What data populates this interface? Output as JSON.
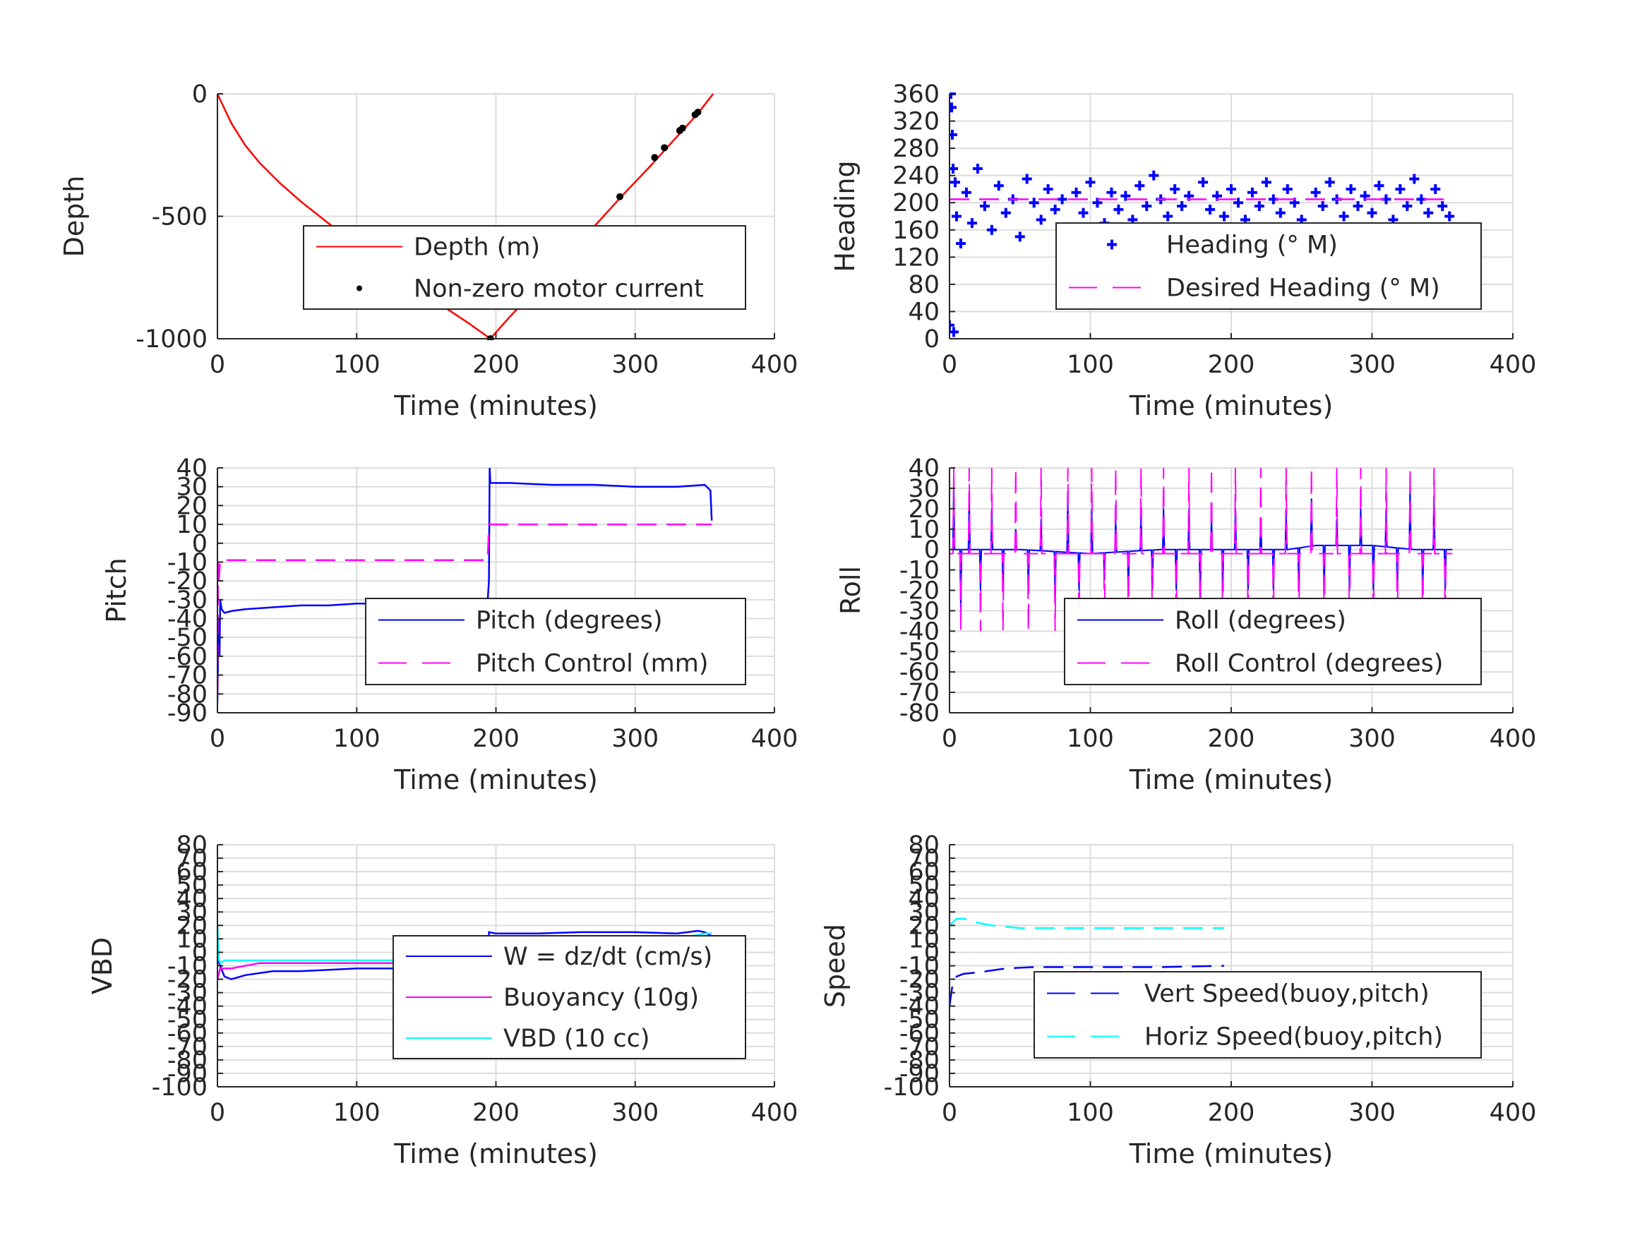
{
  "chart_data": [
    {
      "id": "depth",
      "type": "line",
      "xlabel": "Time (minutes)",
      "ylabel": "Depth",
      "xlim": [
        0,
        400
      ],
      "ylim": [
        -1000,
        0
      ],
      "xticks": [
        0,
        100,
        200,
        300,
        400
      ],
      "xtick_labels": [
        "0",
        "100",
        "200",
        "300",
        "400"
      ],
      "yticks": [
        0,
        -500,
        -1000
      ],
      "ytick_labels": [
        "0",
        "-500",
        "-1000"
      ],
      "grid": true,
      "legend_position": "center-right",
      "series": [
        {
          "name": "Depth (m)",
          "style": "line",
          "color": "#ff0000",
          "x": [
            0,
            10,
            20,
            30,
            45,
            60,
            80,
            100,
            120,
            140,
            160,
            180,
            196,
            210,
            230,
            250,
            270,
            290,
            310,
            330,
            345,
            356
          ],
          "y": [
            0,
            -120,
            -210,
            -280,
            -365,
            -440,
            -530,
            -615,
            -700,
            -780,
            -860,
            -935,
            -1000,
            -910,
            -790,
            -665,
            -545,
            -420,
            -300,
            -175,
            -80,
            0
          ]
        },
        {
          "name": "Non-zero motor current",
          "style": "marker",
          "marker": "dot",
          "color": "#000000",
          "x": [
            196,
            289,
            314,
            321,
            332,
            334,
            343,
            345
          ],
          "y": [
            -1000,
            -420,
            -260,
            -220,
            -150,
            -140,
            -85,
            -75
          ]
        }
      ]
    },
    {
      "id": "heading",
      "type": "scatter",
      "xlabel": "Time (minutes)",
      "ylabel": "Heading",
      "xlim": [
        0,
        400
      ],
      "ylim": [
        0,
        360
      ],
      "xticks": [
        0,
        100,
        200,
        300,
        400
      ],
      "xtick_labels": [
        "0",
        "100",
        "200",
        "300",
        "400"
      ],
      "yticks": [
        0,
        40,
        80,
        120,
        160,
        200,
        240,
        280,
        320,
        360
      ],
      "ytick_labels": [
        "0",
        "40",
        "80",
        "120",
        "160",
        "200",
        "240",
        "280",
        "320",
        "360"
      ],
      "grid": true,
      "legend_position": "lower-right",
      "series": [
        {
          "name": "Heading (° M)",
          "style": "marker",
          "marker": "plus",
          "color": "#0000ff",
          "x": [
            0,
            1,
            1.5,
            2,
            2.5,
            3,
            4,
            5,
            8,
            12,
            16,
            20,
            25,
            30,
            35,
            40,
            45,
            50,
            55,
            60,
            65,
            70,
            75,
            80,
            85,
            90,
            95,
            100,
            105,
            110,
            115,
            120,
            125,
            130,
            135,
            140,
            145,
            150,
            155,
            160,
            165,
            170,
            175,
            180,
            185,
            190,
            195,
            200,
            205,
            210,
            215,
            220,
            225,
            230,
            235,
            240,
            245,
            250,
            255,
            260,
            265,
            270,
            275,
            280,
            285,
            290,
            295,
            300,
            305,
            310,
            315,
            320,
            325,
            330,
            335,
            340,
            345,
            350,
            355
          ],
          "y": [
            20,
            360,
            340,
            300,
            250,
            10,
            230,
            180,
            140,
            215,
            170,
            250,
            195,
            160,
            225,
            185,
            205,
            150,
            235,
            200,
            175,
            220,
            190,
            205,
            160,
            215,
            185,
            230,
            200,
            170,
            215,
            190,
            210,
            175,
            225,
            195,
            240,
            205,
            180,
            220,
            195,
            210,
            130,
            230,
            190,
            210,
            180,
            220,
            200,
            175,
            215,
            195,
            230,
            205,
            185,
            220,
            200,
            175,
            140,
            215,
            195,
            230,
            205,
            180,
            220,
            195,
            210,
            185,
            225,
            205,
            175,
            220,
            195,
            235,
            205,
            185,
            220,
            195,
            180
          ]
        },
        {
          "name": "Desired Heading (° M)",
          "style": "dashed",
          "color": "#ff00ff",
          "x": [
            0,
            357
          ],
          "y": [
            205,
            205
          ]
        }
      ]
    },
    {
      "id": "pitch",
      "type": "line",
      "xlabel": "Time (minutes)",
      "ylabel": "Pitch",
      "xlim": [
        0,
        400
      ],
      "ylim": [
        -90,
        40
      ],
      "xticks": [
        0,
        100,
        200,
        300,
        400
      ],
      "xtick_labels": [
        "0",
        "100",
        "200",
        "300",
        "400"
      ],
      "yticks": [
        40,
        30,
        20,
        10,
        0,
        -10,
        -20,
        -30,
        -40,
        -50,
        -60,
        -70,
        -80,
        -90
      ],
      "ytick_labels": [
        "40",
        "30",
        "20",
        "10",
        "0",
        "-10",
        "-20",
        "-30",
        "-40",
        "-50",
        "-60",
        "-70",
        "-80",
        "-90"
      ],
      "grid": true,
      "legend_position": "center-right",
      "series": [
        {
          "name": "Pitch (degrees)",
          "style": "line",
          "color": "#0000ff",
          "x": [
            0,
            0.8,
            1.5,
            2,
            3,
            5,
            10,
            20,
            40,
            60,
            80,
            100,
            120,
            140,
            160,
            180,
            194,
            195,
            195.5,
            196,
            198,
            210,
            240,
            270,
            300,
            330,
            350,
            354,
            355
          ],
          "y": [
            -85,
            -40,
            -60,
            -30,
            -35,
            -37,
            -36,
            -35,
            -34,
            -33,
            -33,
            -32,
            -32,
            -32,
            -31,
            -31,
            -31,
            -20,
            40,
            32,
            32,
            32,
            31,
            31,
            30,
            30,
            31,
            28,
            12
          ]
        },
        {
          "name": "Pitch Control (mm)",
          "style": "dashed",
          "color": "#ff00ff",
          "x": [
            0,
            0.5,
            1,
            2,
            194,
            194.5,
            195,
            355
          ],
          "y": [
            -80,
            -10,
            -20,
            -9,
            -9,
            0,
            10,
            10
          ]
        }
      ]
    },
    {
      "id": "roll",
      "type": "line",
      "xlabel": "Time (minutes)",
      "ylabel": "Roll",
      "xlim": [
        0,
        400
      ],
      "ylim": [
        -80,
        40
      ],
      "xticks": [
        0,
        100,
        200,
        300,
        400
      ],
      "xtick_labels": [
        "0",
        "100",
        "200",
        "300",
        "400"
      ],
      "yticks": [
        40,
        30,
        20,
        10,
        0,
        -10,
        -20,
        -30,
        -40,
        -50,
        -60,
        -70,
        -80
      ],
      "ytick_labels": [
        "40",
        "30",
        "20",
        "10",
        "0",
        "-10",
        "-20",
        "-30",
        "-40",
        "-50",
        "-60",
        "-70",
        "-80"
      ],
      "grid": true,
      "legend_position": "lower-right",
      "series": [
        {
          "name": "Roll (degrees)",
          "style": "line",
          "color": "#0000ff",
          "base_x": [
            0,
            50,
            100,
            150,
            200,
            240,
            260,
            300,
            330,
            340,
            357
          ],
          "base_y": [
            0,
            0,
            -2,
            0,
            0,
            0,
            2,
            2,
            0,
            0,
            0
          ],
          "spike_x": [
            3,
            8,
            14,
            22,
            30,
            38,
            47,
            56,
            65,
            75,
            84,
            92,
            101,
            110,
            118,
            127,
            136,
            144,
            152,
            161,
            170,
            178,
            186,
            194,
            203,
            212,
            221,
            230,
            239,
            248,
            257,
            266,
            275,
            284,
            292,
            301,
            310,
            318,
            327,
            336,
            344,
            352
          ],
          "spike_y": [
            30,
            -30,
            25,
            -20,
            20,
            -20,
            10,
            -20,
            15,
            -25,
            25,
            -20,
            20,
            -15,
            15,
            -20,
            20,
            -20,
            20,
            -20,
            20,
            -25,
            15,
            -20,
            20,
            -20,
            15,
            -20,
            20,
            -20,
            25,
            -20,
            15,
            -20,
            20,
            -20,
            20,
            -20,
            30,
            -20,
            25,
            -20
          ]
        },
        {
          "name": "Roll Control (degrees)",
          "style": "dashed",
          "color": "#ff00ff",
          "base_y": -2,
          "spike_x": [
            3,
            8,
            14,
            22,
            30,
            38,
            47,
            56,
            65,
            75,
            84,
            92,
            101,
            110,
            118,
            127,
            136,
            144,
            152,
            161,
            170,
            178,
            186,
            194,
            203,
            212,
            221,
            230,
            239,
            248,
            257,
            266,
            275,
            284,
            292,
            301,
            310,
            318,
            327,
            336,
            344,
            352
          ],
          "spike_y": [
            40,
            -40,
            40,
            -40,
            40,
            -40,
            40,
            -40,
            40,
            -40,
            40,
            -40,
            40,
            -40,
            40,
            -40,
            40,
            -40,
            40,
            -40,
            40,
            -40,
            40,
            -40,
            40,
            -40,
            40,
            -40,
            40,
            -40,
            40,
            -40,
            40,
            -40,
            40,
            -40,
            40,
            -40,
            40,
            -40,
            40,
            -40
          ]
        }
      ]
    },
    {
      "id": "vbd",
      "type": "line",
      "xlabel": "Time (minutes)",
      "ylabel": "VBD",
      "xlim": [
        0,
        400
      ],
      "ylim": [
        -100,
        80
      ],
      "xticks": [
        0,
        100,
        200,
        300,
        400
      ],
      "xtick_labels": [
        "0",
        "100",
        "200",
        "300",
        "400"
      ],
      "yticks": [
        80,
        70,
        60,
        50,
        40,
        30,
        20,
        10,
        0,
        -10,
        -20,
        -30,
        -40,
        -50,
        -60,
        -70,
        -80,
        -90,
        -100
      ],
      "ytick_labels": [
        "80",
        "70",
        "60",
        "50",
        "40",
        "30",
        "20",
        "10",
        "0",
        "-10",
        "-20",
        "-30",
        "-40",
        "-50",
        "-60",
        "-70",
        "-80",
        "-90",
        "-100"
      ],
      "grid": true,
      "legend_position": "center-right",
      "series": [
        {
          "name": "W = dz/dt (cm/s)",
          "style": "line",
          "color": "#0000ff",
          "x": [
            0,
            2,
            5,
            10,
            20,
            40,
            60,
            80,
            100,
            130,
            160,
            194,
            195,
            200,
            230,
            260,
            300,
            330,
            345,
            350,
            355
          ],
          "y": [
            -5,
            -10,
            -18,
            -20,
            -17,
            -14,
            -14,
            -13,
            -12,
            -12,
            -11,
            -11,
            15,
            14,
            14,
            15,
            15,
            14,
            16,
            15,
            12
          ]
        },
        {
          "name": "Buoyancy (10g)",
          "style": "line",
          "color": "#ff00ff",
          "x": [
            0,
            2,
            10,
            30,
            60,
            100,
            150,
            194,
            195,
            230,
            300,
            350,
            355
          ],
          "y": [
            -20,
            -12,
            -12,
            -8,
            -8,
            -8,
            -8,
            -8,
            12,
            12,
            12,
            12,
            12
          ]
        },
        {
          "name": "VBD (10 cc)",
          "style": "line",
          "color": "#00ffff",
          "x": [
            0,
            1,
            2,
            5,
            30,
            100,
            194,
            195,
            230,
            300,
            320,
            340,
            350,
            355
          ],
          "y": [
            20,
            -5,
            -8,
            -6,
            -6,
            -6,
            -6,
            8,
            8,
            8,
            9,
            12,
            14,
            14
          ]
        }
      ]
    },
    {
      "id": "speed",
      "type": "line",
      "xlabel": "Time (minutes)",
      "ylabel": "Speed",
      "xlim": [
        0,
        400
      ],
      "ylim": [
        -100,
        80
      ],
      "xticks": [
        0,
        100,
        200,
        300,
        400
      ],
      "xtick_labels": [
        "0",
        "100",
        "200",
        "300",
        "400"
      ],
      "yticks": [
        80,
        70,
        60,
        50,
        40,
        30,
        20,
        10,
        0,
        -10,
        -20,
        -30,
        -40,
        -50,
        -60,
        -70,
        -80,
        -90,
        -100
      ],
      "ytick_labels": [
        "80",
        "70",
        "60",
        "50",
        "40",
        "30",
        "20",
        "10",
        "0",
        "-10",
        "-20",
        "-30",
        "-40",
        "-50",
        "-60",
        "-70",
        "-80",
        "-90",
        "-100"
      ],
      "grid": true,
      "legend_position": "lower-right",
      "series": [
        {
          "name": "Vert Speed(buoy,pitch)",
          "style": "dashed",
          "color": "#0000ff",
          "x": [
            0,
            2,
            5,
            10,
            20,
            40,
            60,
            100,
            150,
            195
          ],
          "y": [
            -40,
            -25,
            -18,
            -16,
            -15,
            -12,
            -11,
            -11,
            -11,
            -10
          ]
        },
        {
          "name": "Horiz Speed(buoy,pitch)",
          "style": "dashed",
          "color": "#00ffff",
          "x": [
            0,
            5,
            10,
            20,
            30,
            50,
            100,
            150,
            195
          ],
          "y": [
            20,
            25,
            25,
            22,
            20,
            18,
            18,
            18,
            18
          ]
        }
      ]
    }
  ]
}
